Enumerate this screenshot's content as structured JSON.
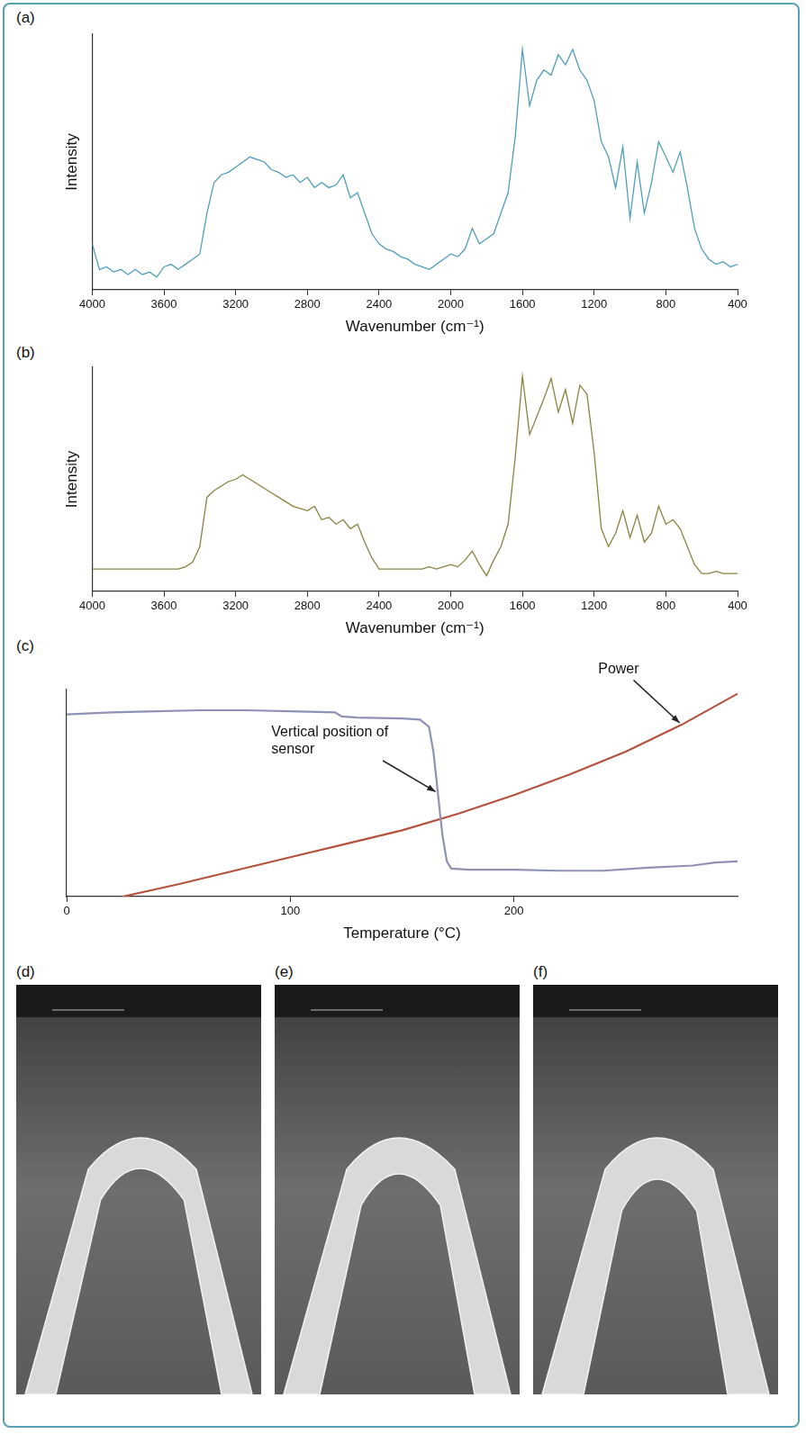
{
  "chart_data": [
    {
      "panel": "(a)",
      "type": "line",
      "x_label": "Wavenumber (cm⁻¹)",
      "y_label": "Intensity",
      "x": [
        4000,
        3960,
        3920,
        3880,
        3840,
        3800,
        3760,
        3720,
        3680,
        3640,
        3600,
        3560,
        3520,
        3480,
        3440,
        3400,
        3360,
        3320,
        3280,
        3240,
        3200,
        3160,
        3120,
        3080,
        3040,
        3000,
        2960,
        2920,
        2880,
        2840,
        2800,
        2760,
        2720,
        2680,
        2640,
        2600,
        2560,
        2520,
        2480,
        2440,
        2400,
        2360,
        2320,
        2280,
        2240,
        2200,
        2160,
        2120,
        2080,
        2040,
        2000,
        1960,
        1920,
        1880,
        1840,
        1800,
        1760,
        1720,
        1680,
        1640,
        1600,
        1560,
        1520,
        1480,
        1440,
        1400,
        1360,
        1320,
        1280,
        1240,
        1200,
        1160,
        1120,
        1080,
        1040,
        1000,
        960,
        920,
        880,
        840,
        800,
        760,
        720,
        680,
        640,
        600,
        560,
        520,
        480,
        440,
        400
      ],
      "series": [
        {
          "color": "#4f9ebb",
          "values": [
            18,
            8,
            9,
            7,
            8,
            6,
            8,
            6,
            7,
            5,
            9,
            10,
            8,
            10,
            12,
            14,
            30,
            42,
            45,
            46,
            48,
            50,
            52,
            51,
            50,
            47,
            46,
            44,
            45,
            42,
            44,
            40,
            42,
            40,
            41,
            45,
            36,
            38,
            30,
            22,
            18,
            16,
            15,
            13,
            12,
            10,
            9,
            8,
            10,
            12,
            14,
            13,
            16,
            24,
            18,
            20,
            22,
            30,
            38,
            60,
            94,
            72,
            82,
            86,
            84,
            92,
            88,
            94,
            86,
            82,
            74,
            58,
            52,
            40,
            56,
            28,
            50,
            30,
            42,
            58,
            52,
            46,
            54,
            40,
            24,
            16,
            12,
            10,
            11,
            9,
            10
          ]
        }
      ],
      "xlim": [
        4000,
        400
      ],
      "xticks": [
        4000,
        3600,
        3200,
        2800,
        2400,
        2000,
        1600,
        1200,
        800,
        400
      ],
      "ylim": [
        0,
        100
      ],
      "yticks": [],
      "grid": false,
      "tick_labels": "x"
    },
    {
      "panel": "(b)",
      "type": "line",
      "x_label": "Wavenumber (cm⁻¹)",
      "y_label": "Intensity",
      "x": [
        4000,
        3960,
        3920,
        3880,
        3840,
        3800,
        3760,
        3720,
        3680,
        3640,
        3600,
        3560,
        3520,
        3480,
        3440,
        3400,
        3360,
        3320,
        3280,
        3240,
        3200,
        3160,
        3120,
        3080,
        3040,
        3000,
        2960,
        2920,
        2880,
        2840,
        2800,
        2760,
        2720,
        2680,
        2640,
        2600,
        2560,
        2520,
        2480,
        2440,
        2400,
        2360,
        2320,
        2280,
        2240,
        2200,
        2160,
        2120,
        2080,
        2040,
        2000,
        1960,
        1920,
        1880,
        1840,
        1800,
        1760,
        1720,
        1680,
        1640,
        1600,
        1560,
        1520,
        1480,
        1440,
        1400,
        1360,
        1320,
        1280,
        1240,
        1200,
        1160,
        1120,
        1080,
        1040,
        1000,
        960,
        920,
        880,
        840,
        800,
        760,
        720,
        680,
        640,
        600,
        560,
        520,
        480,
        440,
        400
      ],
      "series": [
        {
          "color": "#8a8240",
          "values": [
            10,
            10,
            10,
            10,
            10,
            10,
            10,
            10,
            10,
            10,
            10,
            10,
            10,
            11,
            13,
            20,
            42,
            45,
            47,
            49,
            50,
            52,
            50,
            48,
            46,
            44,
            42,
            40,
            38,
            37,
            36,
            38,
            32,
            33,
            30,
            32,
            28,
            30,
            22,
            15,
            10,
            10,
            10,
            10,
            10,
            10,
            10,
            11,
            10,
            11,
            12,
            11,
            14,
            18,
            12,
            7,
            14,
            20,
            30,
            60,
            96,
            70,
            78,
            86,
            95,
            80,
            90,
            75,
            92,
            88,
            62,
            28,
            20,
            26,
            36,
            24,
            34,
            22,
            26,
            38,
            30,
            32,
            28,
            20,
            12,
            8,
            8,
            9,
            8,
            8,
            8
          ]
        }
      ],
      "xlim": [
        4000,
        400
      ],
      "xticks": [
        4000,
        3600,
        3200,
        2800,
        2400,
        2000,
        1600,
        1200,
        800,
        400
      ],
      "ylim": [
        0,
        100
      ],
      "yticks": [],
      "grid": false,
      "tick_labels": "x"
    },
    {
      "panel": "(c)",
      "type": "line",
      "x_label": "Temperature (°C)",
      "series": [
        {
          "name": "Vertical position of sensor",
          "color": "#8e92b4",
          "x": [
            0,
            20,
            40,
            60,
            80,
            100,
            120,
            123,
            130,
            150,
            158,
            162,
            164,
            166,
            168,
            170,
            172,
            180,
            200,
            220,
            240,
            260,
            280,
            290,
            300
          ],
          "values": [
            88,
            89,
            89.5,
            90,
            90,
            89.5,
            89,
            87,
            86.5,
            86,
            85.5,
            82,
            70,
            50,
            30,
            17,
            13.5,
            13,
            13,
            12.5,
            12.5,
            14,
            15,
            16.5,
            17
          ]
        },
        {
          "name": "Power",
          "color": "#b4523e",
          "x": [
            25,
            50,
            75,
            100,
            125,
            150,
            175,
            200,
            225,
            250,
            275,
            300
          ],
          "values": [
            0,
            6,
            12.5,
            19,
            25.5,
            32,
            40,
            49,
            59,
            70,
            83,
            98
          ]
        }
      ],
      "xlim": [
        0,
        300
      ],
      "xticks": [
        0,
        100,
        200
      ],
      "ylim": [
        0,
        100
      ],
      "yticks": [],
      "grid": false,
      "tick_labels": "x"
    }
  ],
  "images": [
    {
      "panel": "(d)"
    },
    {
      "panel": "(e)"
    },
    {
      "panel": "(f)"
    }
  ]
}
